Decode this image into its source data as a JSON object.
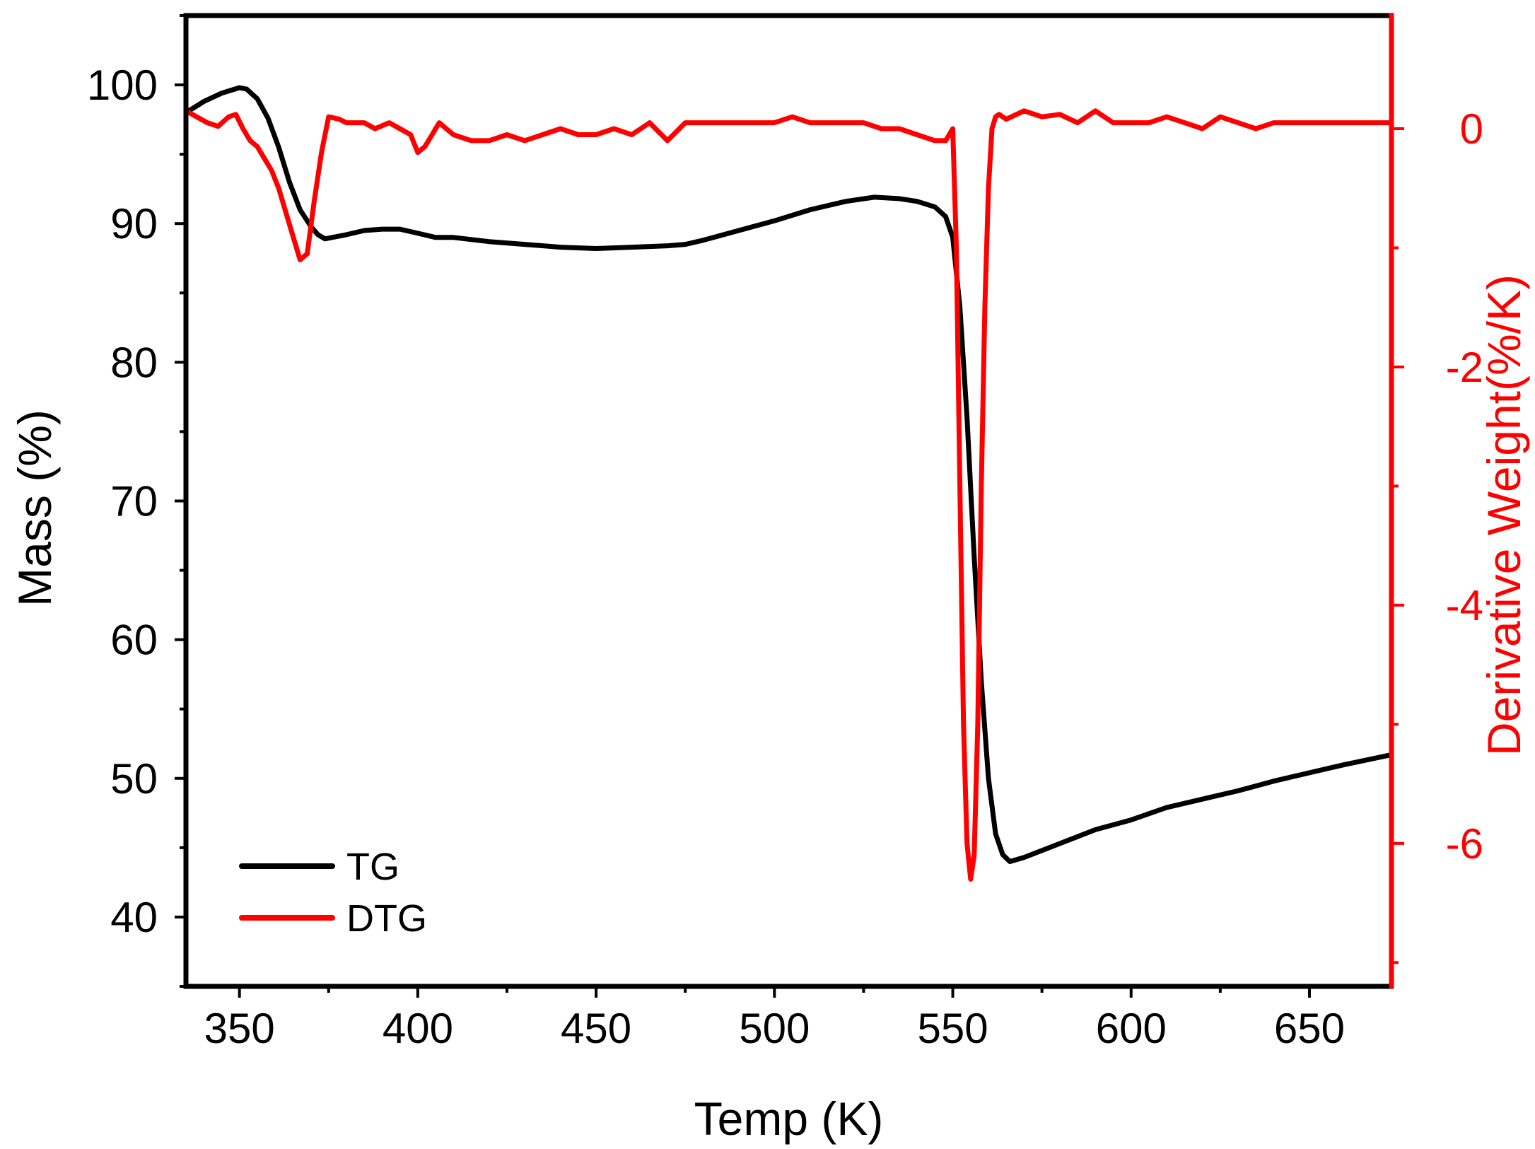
{
  "chart_data": {
    "type": "line",
    "title": "",
    "xlabel": "Temp (K)",
    "ylabel": "Mass (%)",
    "y2label": "Derivative Weight(%/K)",
    "xlim": [
      335,
      673
    ],
    "ylim": [
      35,
      105
    ],
    "y2lim": [
      -7.2,
      0.95
    ],
    "x_ticks": [
      350,
      400,
      450,
      500,
      550,
      600,
      650
    ],
    "y_ticks": [
      40,
      50,
      60,
      70,
      80,
      90,
      100
    ],
    "y2_ticks": [
      -6,
      -4,
      -2,
      0
    ],
    "axis_color": "#000000",
    "y2_color": "#ff0000",
    "grid": false,
    "legend_position": "bottom-left",
    "series": [
      {
        "name": "TG",
        "axis": "left",
        "color": "#000000",
        "x": [
          335,
          340,
          345,
          350,
          352,
          355,
          358,
          361,
          364,
          367,
          370,
          372,
          374,
          376,
          380,
          385,
          390,
          395,
          400,
          405,
          410,
          420,
          430,
          440,
          450,
          460,
          470,
          475,
          480,
          490,
          500,
          510,
          520,
          528,
          535,
          540,
          545,
          548,
          550,
          552,
          554,
          556,
          558,
          560,
          562,
          564,
          566,
          570,
          580,
          590,
          600,
          610,
          620,
          630,
          640,
          650,
          660,
          673
        ],
        "values": [
          98.0,
          98.8,
          99.4,
          99.8,
          99.7,
          99.0,
          97.6,
          95.5,
          93.0,
          91.0,
          89.8,
          89.2,
          88.9,
          89.0,
          89.2,
          89.5,
          89.6,
          89.6,
          89.3,
          89.0,
          89.0,
          88.7,
          88.5,
          88.3,
          88.2,
          88.3,
          88.4,
          88.5,
          88.8,
          89.5,
          90.2,
          91.0,
          91.6,
          91.9,
          91.8,
          91.6,
          91.2,
          90.5,
          89.0,
          84.0,
          76.0,
          66.0,
          57.0,
          50.0,
          46.0,
          44.5,
          44.0,
          44.3,
          45.3,
          46.3,
          47.0,
          47.9,
          48.5,
          49.1,
          49.8,
          50.4,
          51.0,
          51.7
        ]
      },
      {
        "name": "DTG",
        "axis": "right",
        "color": "#ff0000",
        "x": [
          335,
          338,
          341,
          344,
          347,
          349,
          351,
          353,
          355,
          357,
          359,
          361,
          363,
          365,
          367,
          369,
          371,
          373,
          375,
          378,
          380,
          385,
          388,
          392,
          395,
          398,
          400,
          402,
          404,
          406,
          410,
          415,
          420,
          425,
          430,
          435,
          440,
          445,
          450,
          455,
          460,
          465,
          470,
          475,
          480,
          490,
          500,
          505,
          510,
          520,
          525,
          530,
          535,
          540,
          545,
          548,
          549,
          550,
          551,
          552,
          553,
          554,
          555,
          556,
          557,
          558,
          559,
          560,
          561,
          562,
          563,
          565,
          570,
          575,
          580,
          585,
          590,
          595,
          600,
          605,
          610,
          615,
          620,
          625,
          630,
          635,
          640,
          645,
          650,
          655,
          660,
          665,
          670,
          673
        ],
        "values": [
          0.15,
          0.1,
          0.05,
          0.02,
          0.1,
          0.12,
          0.0,
          -0.1,
          -0.15,
          -0.25,
          -0.35,
          -0.5,
          -0.7,
          -0.9,
          -1.1,
          -1.05,
          -0.6,
          -0.2,
          0.1,
          0.08,
          0.05,
          0.05,
          0.0,
          0.05,
          0.0,
          -0.05,
          -0.2,
          -0.15,
          -0.05,
          0.05,
          -0.05,
          -0.1,
          -0.1,
          -0.05,
          -0.1,
          -0.05,
          0.0,
          -0.05,
          -0.05,
          0.0,
          -0.05,
          0.05,
          -0.1,
          0.05,
          0.05,
          0.05,
          0.05,
          0.1,
          0.05,
          0.05,
          0.05,
          0.0,
          0.0,
          -0.05,
          -0.1,
          -0.1,
          -0.05,
          0.0,
          -1.0,
          -3.0,
          -5.0,
          -6.0,
          -6.3,
          -6.1,
          -5.0,
          -3.0,
          -1.5,
          -0.5,
          0.0,
          0.1,
          0.12,
          0.08,
          0.15,
          0.1,
          0.12,
          0.05,
          0.15,
          0.05,
          0.05,
          0.05,
          0.1,
          0.05,
          0.0,
          0.1,
          0.05,
          0.0,
          0.05,
          0.05,
          0.05,
          0.05,
          0.05,
          0.05,
          0.05,
          0.05
        ]
      }
    ]
  }
}
